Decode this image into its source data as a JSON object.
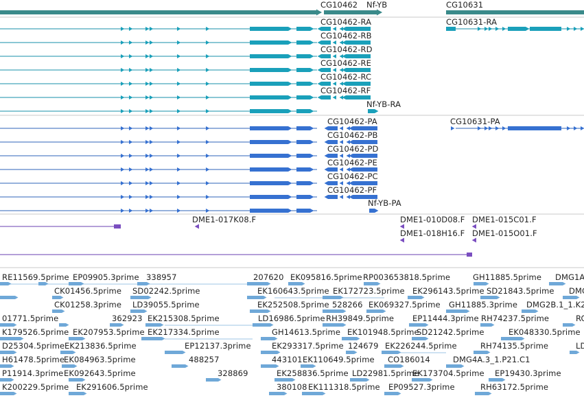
{
  "tracks": {
    "gene_track": {
      "labels": [
        "CG10462",
        "Nf-YB",
        "CG10631"
      ],
      "colors": {
        "gene": "#3a8a8a"
      }
    },
    "transcript_track": {
      "labels": [
        "CG10462-RA",
        "CG10462-RB",
        "CG10462-RD",
        "CG10462-RE",
        "CG10462-RC",
        "CG10462-RF",
        "Nf-YB-RA",
        "CG10631-RA"
      ],
      "colors": {
        "feature": "#1aa0ba",
        "line": "#158fa8"
      }
    },
    "protein_track": {
      "labels": [
        "CG10462-PA",
        "CG10462-PB",
        "CG10462-PD",
        "CG10462-PE",
        "CG10462-PC",
        "CG10462-PF",
        "Nf-YB-PA",
        "CG10631-PA"
      ],
      "colors": {
        "feature": "#3671d1",
        "line": "#2e63b8"
      }
    },
    "clone_track": {
      "labels": [
        "DME1-017K08.F",
        "DME1-010D08.F",
        "DME1-015C01.F",
        "DME1-018H16.F",
        "DME1-015O01.F"
      ],
      "colors": {
        "feature": "#7a4ec0",
        "line": "#6a3fb0"
      }
    },
    "est_track": {
      "labels": [
        "RE11569.5prime",
        "EP09905.3prime",
        "338957",
        "207620",
        "EK095816.5prime",
        "RP003653818.5prime",
        "GH11885.5prime",
        "DMG1A",
        "CK01456.5prime",
        "SD02242.5prime",
        "EK160643.5prime",
        "EK172723.5prime",
        "EK296143.5prime",
        "SD21843.5prime",
        "DMG",
        "CK01258.3prime",
        "LD39055.5prime",
        "EK252508.5prime",
        "528266",
        "EK069327.5prime",
        "GH11885.3prime",
        "DMG2B.1_1.K2",
        "01771.5prime",
        "362923",
        "EK215308.5prime",
        "LD16986.5prime",
        "RH39849.5prime",
        "EP11444.3prime",
        "RH74237.5prime",
        "RC",
        "K179526.5prime",
        "EK207953.5prime",
        "EK217334.5prime",
        "GH14613.5prime",
        "EK101948.5prime",
        "SD21242.5prime",
        "EK048330.5prime",
        "D25304.5prime",
        "EK213836.5prime",
        "EP12137.3prime",
        "EK293317.5prime",
        "124679",
        "EK226244.5prime",
        "RH74135.5prime",
        "LD",
        "H61478.5prime",
        "EK084963.5prime",
        "488257",
        "443101",
        "EK110649.5prime",
        "CO186014",
        "DMG4A.3_1.P21.C1",
        "P11914.3prime",
        "EK092643.5prime",
        "328869",
        "EK258836.5prime",
        "LD22981.5prime",
        "EK173704.5prime",
        "EP19430.3prime",
        "K200229.5prime",
        "EK291606.5prime",
        "380108",
        "EK111318.5prime",
        "EP09527.3prime",
        "RH63172.5prime"
      ],
      "colors": {
        "feature": "#6fa8d8",
        "line": "#9cc4e6"
      }
    }
  }
}
